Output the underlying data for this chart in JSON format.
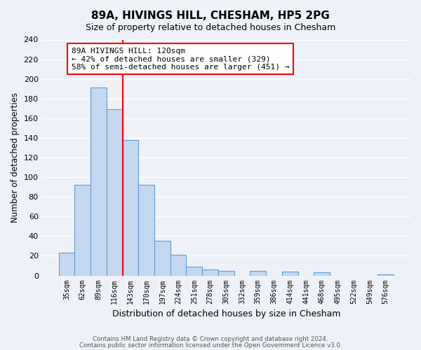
{
  "title": "89A, HIVINGS HILL, CHESHAM, HP5 2PG",
  "subtitle": "Size of property relative to detached houses in Chesham",
  "xlabel": "Distribution of detached houses by size in Chesham",
  "ylabel": "Number of detached properties",
  "bin_labels": [
    "35sqm",
    "62sqm",
    "89sqm",
    "116sqm",
    "143sqm",
    "170sqm",
    "197sqm",
    "224sqm",
    "251sqm",
    "278sqm",
    "305sqm",
    "332sqm",
    "359sqm",
    "386sqm",
    "414sqm",
    "441sqm",
    "468sqm",
    "495sqm",
    "522sqm",
    "549sqm",
    "576sqm"
  ],
  "bin_values": [
    23,
    92,
    191,
    169,
    138,
    92,
    35,
    21,
    9,
    6,
    5,
    0,
    5,
    0,
    4,
    0,
    3,
    0,
    0,
    0,
    1
  ],
  "bar_color": "#c5d8f0",
  "bar_edge_color": "#5b9bd5",
  "vline_color": "red",
  "annotation_text": "89A HIVINGS HILL: 120sqm\n← 42% of detached houses are smaller (329)\n58% of semi-detached houses are larger (451) →",
  "annotation_box_color": "white",
  "annotation_box_edge_color": "red",
  "ylim": [
    0,
    240
  ],
  "yticks": [
    0,
    20,
    40,
    60,
    80,
    100,
    120,
    140,
    160,
    180,
    200,
    220,
    240
  ],
  "footer_line1": "Contains HM Land Registry data © Crown copyright and database right 2024.",
  "footer_line2": "Contains public sector information licensed under the Open Government Licence v3.0.",
  "bg_color": "#eef2f8",
  "grid_color": "white"
}
